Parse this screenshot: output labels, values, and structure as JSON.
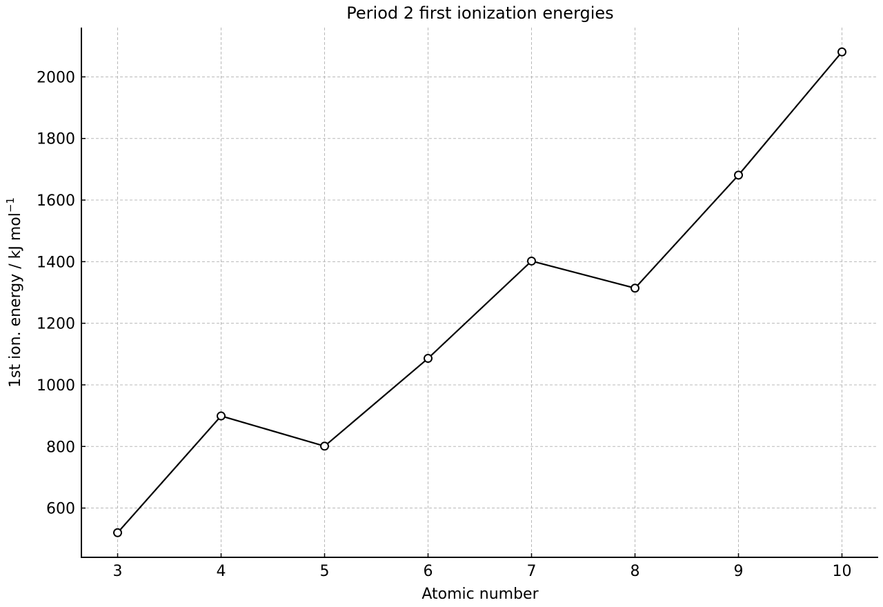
{
  "chart_data": {
    "type": "line",
    "title": "Period 2 first ionization energies",
    "xlabel": "Atomic number",
    "ylabel": "1st ion. energy / kJ mol",
    "ylabel_superscript": "−1",
    "x": [
      3,
      4,
      5,
      6,
      7,
      8,
      9,
      10
    ],
    "series": [
      {
        "values": [
          520,
          899,
          801,
          1086,
          1402,
          1314,
          1681,
          2081
        ]
      }
    ],
    "xlim": [
      2.65,
      10.35
    ],
    "ylim": [
      440,
      2160
    ],
    "xticks": [
      "3",
      "4",
      "5",
      "6",
      "7",
      "8",
      "9",
      "10"
    ],
    "yticks": [
      "600",
      "800",
      "1000",
      "1200",
      "1400",
      "1600",
      "1800",
      "2000"
    ],
    "grid": true,
    "line_color": "#000000",
    "marker": "open-circle"
  }
}
